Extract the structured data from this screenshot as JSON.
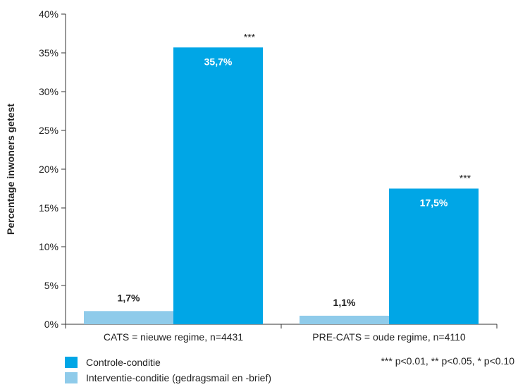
{
  "chart_data": {
    "type": "bar",
    "categories": [
      "CATS = nieuwe regime, n=4431",
      "PRE-CATS = oude regime, n=4110"
    ],
    "series": [
      {
        "name": "Interventie-conditie (gedragsmail en -brief)",
        "color": "#8fcbea",
        "values": [
          1.7,
          1.1
        ],
        "labels": [
          "1,7%",
          "1,1%"
        ],
        "sig": [
          "",
          ""
        ]
      },
      {
        "name": "Controle-conditie",
        "color": "#00a6e6",
        "values": [
          35.7,
          17.5
        ],
        "labels": [
          "35,7%",
          "17,5%"
        ],
        "sig": [
          "***",
          "***"
        ]
      }
    ],
    "ylabel": "Percentage inwoners getest",
    "ylim": [
      0,
      40
    ],
    "yticks": [
      0,
      5,
      10,
      15,
      20,
      25,
      30,
      35,
      40
    ],
    "ytick_labels": [
      "0%",
      "5%",
      "10%",
      "15%",
      "20%",
      "25%",
      "30%",
      "35%",
      "40%"
    ],
    "grid": false,
    "legend_position": "bottom-left"
  },
  "legend": {
    "items": [
      {
        "label": "Controle-conditie",
        "color": "#00a6e6"
      },
      {
        "label": "Interventie-conditie (gedragsmail en -brief)",
        "color": "#8fcbea"
      }
    ]
  },
  "significance_note": "*** p<0.01, ** p<0.05, * p<0.10"
}
